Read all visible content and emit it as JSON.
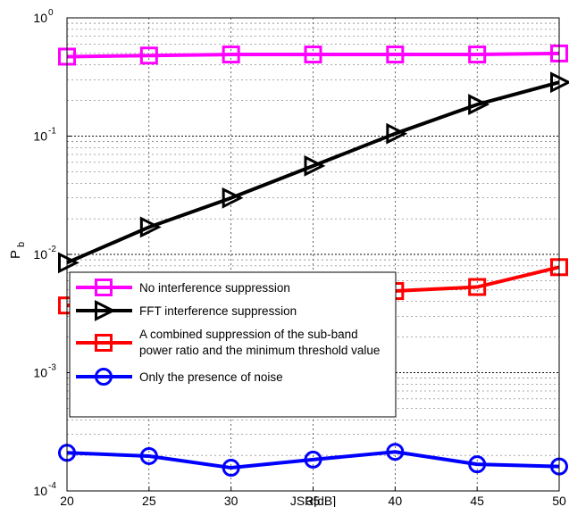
{
  "chart_data": {
    "type": "line",
    "title": "",
    "xlabel": "JSR[dB]",
    "ylabel_main": "P",
    "ylabel_sub": "b",
    "xlim": [
      20,
      50
    ],
    "ylim": [
      0.0001,
      1
    ],
    "y_scale": "log",
    "grid": true,
    "x_ticks": [
      20,
      25,
      30,
      35,
      40,
      45,
      50
    ],
    "y_ticks": [
      {
        "base": "10",
        "exp": "0"
      },
      {
        "base": "10",
        "exp": "-1"
      },
      {
        "base": "10",
        "exp": "-2"
      },
      {
        "base": "10",
        "exp": "-3"
      },
      {
        "base": "10",
        "exp": "-4"
      }
    ],
    "legend_position": "bottom-left",
    "series": [
      {
        "name": "No interference suppression",
        "color": "#ff00ff",
        "marker": "square",
        "x": [
          20,
          25,
          30,
          35,
          40,
          45,
          50
        ],
        "y": [
          0.47,
          0.48,
          0.49,
          0.49,
          0.49,
          0.49,
          0.5
        ]
      },
      {
        "name": "FFT interference suppression",
        "color": "#000000",
        "marker": "triangle-right",
        "x": [
          20,
          25,
          30,
          35,
          40,
          45,
          50
        ],
        "y": [
          0.0085,
          0.017,
          0.03,
          0.056,
          0.105,
          0.185,
          0.285
        ]
      },
      {
        "name": "A combined suppression of the sub-band power ratio and the minimum threshold value",
        "legend_lines": [
          "A combined suppression of the sub-band",
          "power ratio and the minimum threshold value"
        ],
        "color": "#ff0000",
        "marker": "square",
        "x": [
          20,
          25,
          30,
          35,
          40,
          45,
          50
        ],
        "y": [
          0.0037,
          0.0042,
          0.0044,
          0.0047,
          0.0049,
          0.0053,
          0.0078
        ]
      },
      {
        "name": "Only the presence of noise",
        "color": "#0000ff",
        "marker": "circle",
        "x": [
          20,
          25,
          30,
          35,
          40,
          45,
          50
        ],
        "y": [
          0.00021,
          0.000197,
          0.000157,
          0.000184,
          0.000214,
          0.000168,
          0.000161
        ]
      }
    ]
  }
}
